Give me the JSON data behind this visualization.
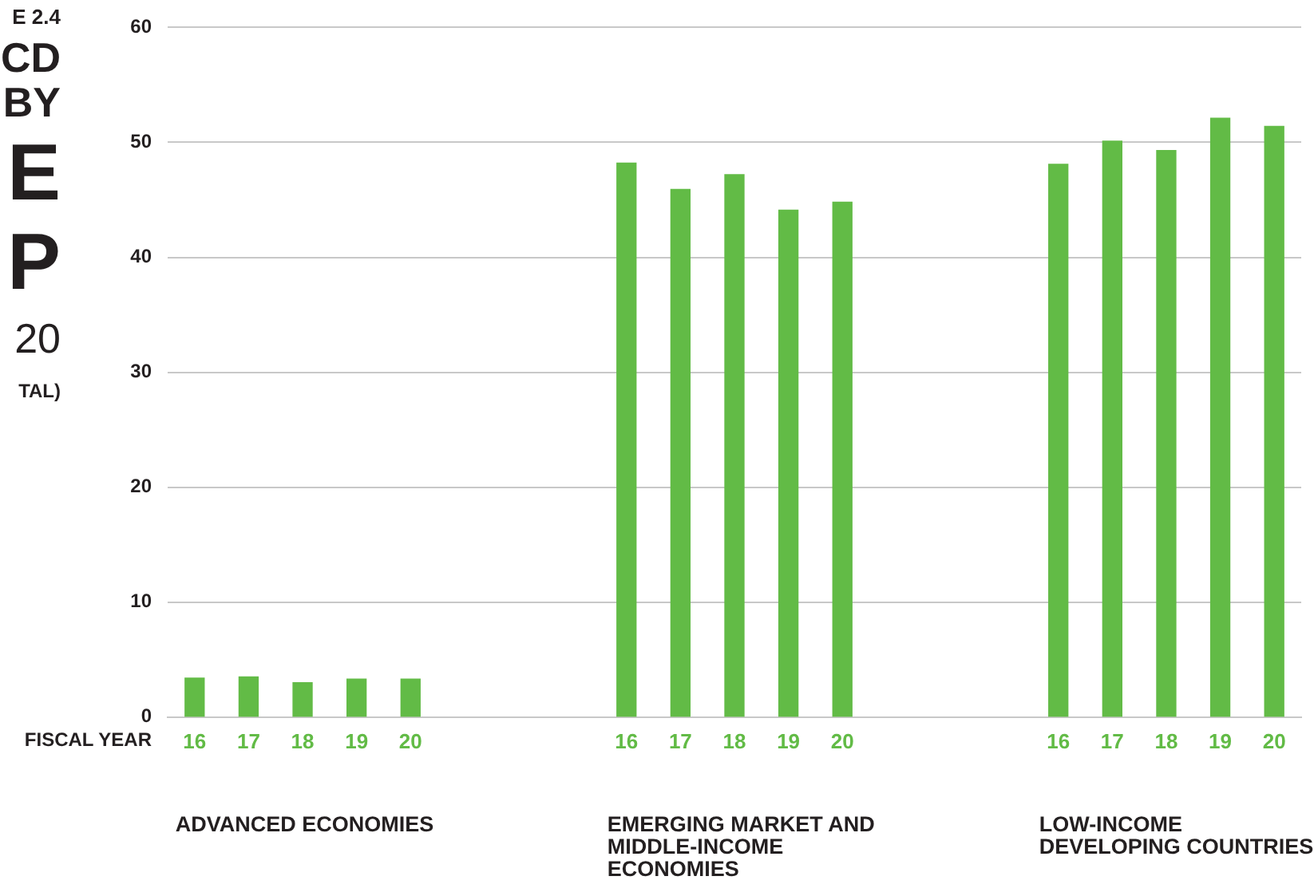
{
  "chart_data": {
    "type": "bar",
    "xlabel": "FISCAL YEAR",
    "categories": [
      "16",
      "17",
      "18",
      "19",
      "20",
      null,
      null,
      null,
      "16",
      "17",
      "18",
      "19",
      "20",
      null,
      null,
      null,
      "16",
      "17",
      "18",
      "19",
      "20"
    ],
    "values": [
      3.4,
      3.5,
      3.0,
      3.3,
      3.3,
      null,
      null,
      null,
      48.2,
      45.9,
      47.2,
      44.1,
      44.8,
      null,
      null,
      null,
      48.1,
      50.1,
      49.3,
      52.1,
      51.4
    ],
    "color": "#62bb46",
    "ylim": [
      0,
      60
    ],
    "yticks": [
      0,
      10,
      20,
      30,
      40,
      50,
      60
    ],
    "grid": "y",
    "legend": false,
    "annotations": [
      "E 2.4",
      "CD",
      "BY",
      "E",
      "P",
      "20",
      "TAL)",
      "ADVANCED ECONOMIES",
      "EMERGING MARKET AND MIDDLE-INCOME ECONOMIES",
      "LOW-INCOME DEVELOPING COUNTRIES"
    ]
  }
}
